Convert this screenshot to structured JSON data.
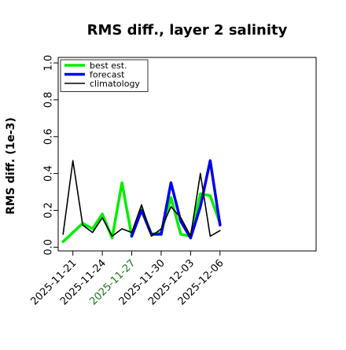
{
  "chart_data": {
    "type": "line",
    "title": "RMS diff., layer 2 salinity",
    "xlabel": "",
    "ylabel": "RMS diff. (1e-3)",
    "ylim": [
      -0.02,
      1.03
    ],
    "yticks": [
      "0.0",
      "0.2",
      "0.4",
      "0.6",
      "0.8",
      "1.0"
    ],
    "ytick_values": [
      0.0,
      0.2,
      0.4,
      0.6,
      0.8,
      1.0
    ],
    "xlim": [
      -1.5,
      24.8
    ],
    "xtick_labels": [
      "2025-11-21",
      "2025-11-24",
      "2025-11-27",
      "2025-11-30",
      "2025-12-03",
      "2025-12-06"
    ],
    "xtick_positions": [
      0,
      3,
      6,
      9,
      12,
      15
    ],
    "highlight_tick": {
      "label": "2025-11-27",
      "color": "#1a7a1a"
    },
    "grid": false,
    "legend_position": "top-left",
    "series": [
      {
        "name": "best est.",
        "color": "#00ee00",
        "x": [
          -1,
          0,
          1,
          2,
          3,
          4,
          5,
          6,
          7,
          8,
          9,
          10,
          11,
          12,
          13,
          14,
          15
        ],
        "values": [
          0.03,
          0.08,
          0.13,
          0.1,
          0.18,
          0.05,
          0.35,
          0.06,
          0.21,
          0.07,
          0.08,
          0.27,
          0.07,
          0.06,
          0.29,
          0.28,
          0.13
        ]
      },
      {
        "name": "forecast",
        "color": "#0000ee",
        "x": [
          6,
          7,
          8,
          9,
          10,
          11,
          12,
          13,
          14,
          15
        ],
        "values": [
          0.06,
          0.2,
          0.07,
          0.07,
          0.35,
          0.14,
          0.05,
          0.22,
          0.47,
          0.12
        ]
      },
      {
        "name": "climatology",
        "color": "#000000",
        "x": [
          -1,
          0,
          1,
          2,
          3,
          4,
          5,
          6,
          7,
          8,
          9,
          10,
          11,
          12,
          13,
          14,
          15
        ],
        "values": [
          0.07,
          0.47,
          0.12,
          0.08,
          0.16,
          0.06,
          0.1,
          0.08,
          0.23,
          0.06,
          0.1,
          0.22,
          0.16,
          0.06,
          0.4,
          0.06,
          0.09
        ]
      }
    ]
  }
}
